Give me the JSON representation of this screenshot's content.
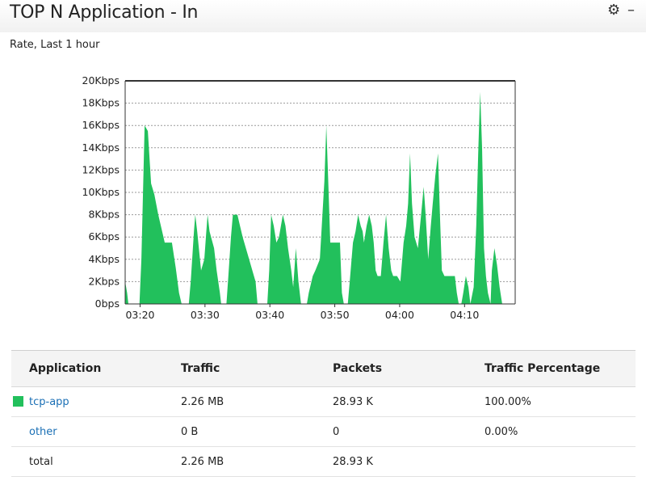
{
  "header": {
    "title": "TOP N Application - In",
    "gear_icon": "gear-icon",
    "minimize_icon": "minimize-icon",
    "subtitle": "Rate, Last 1 hour"
  },
  "chart_data": {
    "type": "area",
    "color": "#22c05c",
    "y_ticks": [
      "0bps",
      "2Kbps",
      "4Kbps",
      "6Kbps",
      "8Kbps",
      "10Kbps",
      "12Kbps",
      "14Kbps",
      "16Kbps",
      "18Kbps",
      "20Kbps"
    ],
    "x_ticks": [
      {
        "label": "03:20",
        "t": 20
      },
      {
        "label": "03:30",
        "t": 30
      },
      {
        "label": "03:40",
        "t": 40
      },
      {
        "label": "03:50",
        "t": 50
      },
      {
        "label": "04:00",
        "t": 60
      },
      {
        "label": "04:10",
        "t": 70
      }
    ],
    "ylim": [
      0,
      20
    ],
    "xlim": [
      17.7,
      77.8
    ],
    "grid": true,
    "series": [
      {
        "points": [
          [
            17.7,
            2.0
          ],
          [
            18.0,
            1.0
          ],
          [
            18.2,
            0
          ],
          [
            19.9,
            0
          ],
          [
            20.2,
            4.0
          ],
          [
            20.7,
            16.0
          ],
          [
            21.2,
            15.5
          ],
          [
            21.7,
            10.8
          ],
          [
            22.2,
            9.8
          ],
          [
            22.8,
            8.0
          ],
          [
            23.4,
            6.5
          ],
          [
            23.8,
            5.5
          ],
          [
            24.3,
            5.5
          ],
          [
            24.9,
            5.5
          ],
          [
            25.5,
            3.2
          ],
          [
            26.0,
            1.0
          ],
          [
            26.4,
            0
          ],
          [
            27.5,
            0
          ],
          [
            27.8,
            2.0
          ],
          [
            28.3,
            6.5
          ],
          [
            28.5,
            8.0
          ],
          [
            28.8,
            6.5
          ],
          [
            29.4,
            3.0
          ],
          [
            29.9,
            4.0
          ],
          [
            30.2,
            6.5
          ],
          [
            30.4,
            8.0
          ],
          [
            30.7,
            6.5
          ],
          [
            31.4,
            5.0
          ],
          [
            31.8,
            3.0
          ],
          [
            32.3,
            1.0
          ],
          [
            32.5,
            0
          ],
          [
            33.3,
            0
          ],
          [
            33.6,
            2.5
          ],
          [
            34.0,
            6.0
          ],
          [
            34.3,
            8.0
          ],
          [
            35.0,
            8.0
          ],
          [
            35.4,
            7.0
          ],
          [
            35.8,
            6.0
          ],
          [
            36.3,
            5.0
          ],
          [
            36.8,
            4.0
          ],
          [
            37.3,
            3.0
          ],
          [
            37.8,
            2.0
          ],
          [
            38.1,
            0
          ],
          [
            39.6,
            0
          ],
          [
            39.9,
            3.0
          ],
          [
            40.2,
            8.0
          ],
          [
            40.6,
            7.0
          ],
          [
            41.0,
            5.5
          ],
          [
            41.4,
            6.0
          ],
          [
            41.7,
            7.0
          ],
          [
            42.0,
            8.0
          ],
          [
            42.4,
            7.0
          ],
          [
            42.8,
            5.0
          ],
          [
            43.3,
            3.0
          ],
          [
            43.6,
            1.5
          ],
          [
            44.0,
            5.0
          ],
          [
            44.4,
            2.0
          ],
          [
            44.8,
            0
          ],
          [
            45.7,
            0
          ],
          [
            46.0,
            1.0
          ],
          [
            46.6,
            2.5
          ],
          [
            47.0,
            3.0
          ],
          [
            47.7,
            4.0
          ],
          [
            48.0,
            7.0
          ],
          [
            48.4,
            11.0
          ],
          [
            48.7,
            16.0
          ],
          [
            49.0,
            11.0
          ],
          [
            49.3,
            5.5
          ],
          [
            49.6,
            5.5
          ],
          [
            50.2,
            5.5
          ],
          [
            50.8,
            5.5
          ],
          [
            51.1,
            1.0
          ],
          [
            51.4,
            0
          ],
          [
            52.0,
            0
          ],
          [
            52.3,
            2.0
          ],
          [
            52.8,
            5.5
          ],
          [
            53.2,
            6.5
          ],
          [
            53.6,
            8.0
          ],
          [
            54.0,
            7.0
          ],
          [
            54.3,
            6.5
          ],
          [
            54.5,
            5.5
          ],
          [
            54.9,
            7.0
          ],
          [
            55.3,
            8.0
          ],
          [
            55.7,
            7.0
          ],
          [
            56.0,
            5.5
          ],
          [
            56.3,
            3.0
          ],
          [
            56.6,
            2.5
          ],
          [
            57.1,
            2.5
          ],
          [
            57.5,
            5.5
          ],
          [
            57.9,
            8.0
          ],
          [
            58.3,
            5.0
          ],
          [
            58.7,
            3.0
          ],
          [
            59.0,
            2.5
          ],
          [
            59.6,
            2.5
          ],
          [
            60.1,
            2.0
          ],
          [
            60.6,
            5.5
          ],
          [
            61.0,
            7.0
          ],
          [
            61.3,
            9.0
          ],
          [
            61.6,
            13.5
          ],
          [
            61.9,
            9.0
          ],
          [
            62.3,
            6.0
          ],
          [
            62.8,
            5.0
          ],
          [
            63.3,
            8.0
          ],
          [
            63.7,
            10.5
          ],
          [
            64.0,
            8.0
          ],
          [
            64.4,
            4.0
          ],
          [
            64.8,
            7.0
          ],
          [
            65.1,
            9.0
          ],
          [
            65.5,
            11.5
          ],
          [
            65.9,
            13.5
          ],
          [
            66.2,
            8.0
          ],
          [
            66.5,
            3.0
          ],
          [
            66.9,
            2.5
          ],
          [
            67.5,
            2.5
          ],
          [
            68.0,
            2.5
          ],
          [
            68.5,
            2.5
          ],
          [
            68.8,
            1.0
          ],
          [
            69.1,
            0
          ],
          [
            69.5,
            0
          ],
          [
            69.8,
            1.0
          ],
          [
            70.2,
            2.5
          ],
          [
            70.6,
            1.5
          ],
          [
            70.9,
            0
          ],
          [
            71.4,
            1.5
          ],
          [
            71.8,
            7.0
          ],
          [
            72.1,
            13.5
          ],
          [
            72.4,
            19.0
          ],
          [
            72.7,
            14.0
          ],
          [
            73.0,
            5.0
          ],
          [
            73.3,
            2.5
          ],
          [
            73.6,
            1.0
          ],
          [
            74.0,
            0
          ],
          [
            74.2,
            3.0
          ],
          [
            74.6,
            5.0
          ],
          [
            75.0,
            3.5
          ],
          [
            75.4,
            1.5
          ],
          [
            75.8,
            0
          ],
          [
            77.8,
            0
          ]
        ]
      }
    ]
  },
  "table": {
    "headers": [
      "Application",
      "Traffic",
      "Packets",
      "Traffic Percentage"
    ],
    "rows": [
      {
        "app": "tcp-app",
        "traffic": "2.26 MB",
        "packets": "28.93 K",
        "percentage": "100.00%",
        "swatch_color": "#22c05c"
      },
      {
        "app": "other",
        "traffic": "0 B",
        "packets": "0",
        "percentage": "0.00%"
      },
      {
        "app": "total",
        "traffic": "2.26 MB",
        "packets": "28.93 K",
        "percentage": ""
      }
    ]
  }
}
